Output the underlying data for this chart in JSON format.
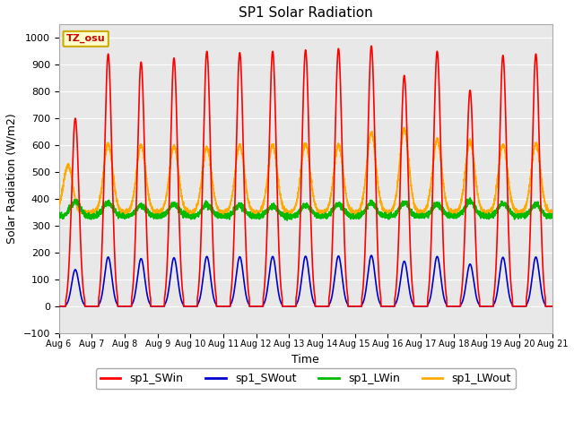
{
  "title": "SP1 Solar Radiation",
  "xlabel": "Time",
  "ylabel": "Solar Radiation (W/m2)",
  "ylim": [
    -100,
    1050
  ],
  "yticks": [
    -100,
    0,
    100,
    200,
    300,
    400,
    500,
    600,
    700,
    800,
    900,
    1000
  ],
  "start_day": 6,
  "n_days": 15,
  "legend_labels": [
    "sp1_SWin",
    "sp1_SWout",
    "sp1_LWin",
    "sp1_LWout"
  ],
  "legend_colors": [
    "#ff0000",
    "#0000cc",
    "#00bb00",
    "#ffaa00"
  ],
  "tz_label": "TZ_osu",
  "plot_bg": "#e8e8e8",
  "fig_bg": "#ffffff",
  "grid_color": "#ffffff",
  "line_width": 1.2
}
